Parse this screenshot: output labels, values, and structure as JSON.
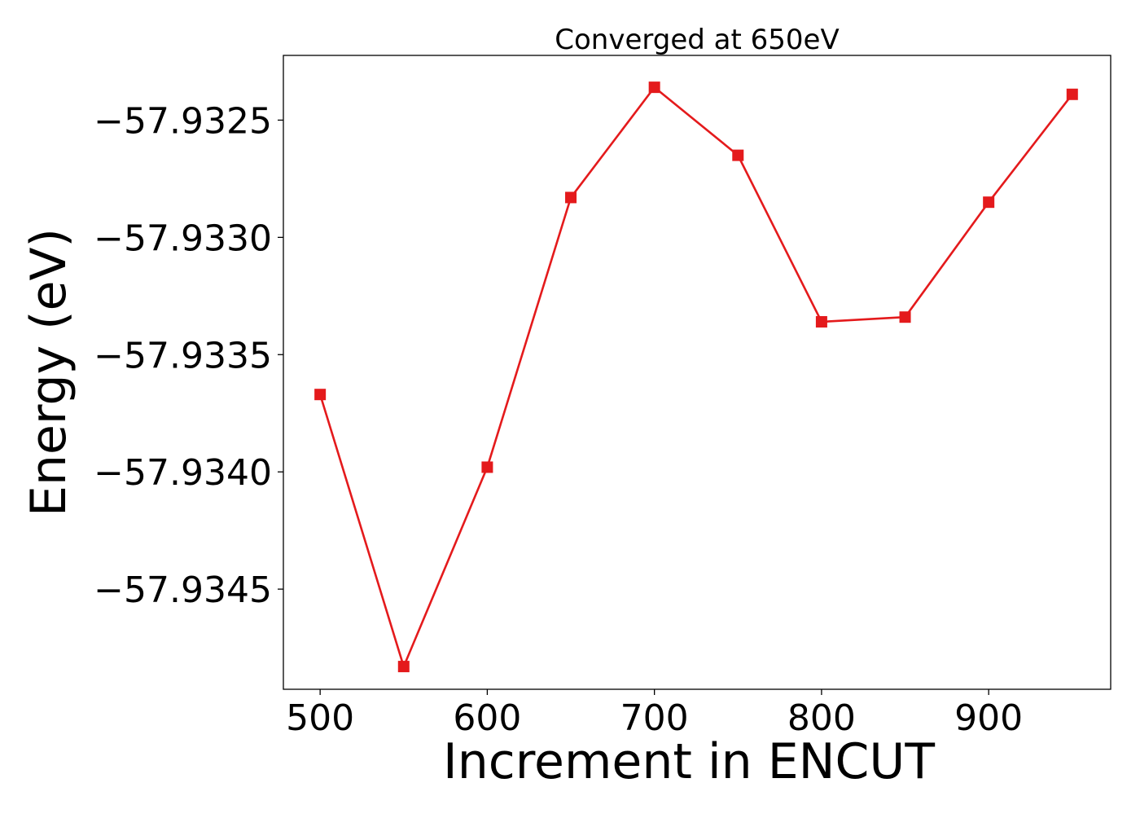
{
  "chart_data": {
    "type": "line",
    "title": "Converged at 650eV",
    "xlabel": "Increment in ENCUT",
    "ylabel": "Energy (eV)",
    "x": [
      500,
      550,
      600,
      650,
      700,
      750,
      800,
      850,
      900,
      950
    ],
    "series": [
      {
        "name": "",
        "values": [
          -57.93367,
          -57.93483,
          -57.93398,
          -57.93283,
          -57.93236,
          -57.93265,
          -57.93336,
          -57.93334,
          -57.93285,
          -57.93239
        ],
        "color": "#e41a1c",
        "marker": "square"
      }
    ],
    "xticks": [
      500,
      600,
      700,
      800,
      900
    ],
    "xtick_labels": [
      "500",
      "600",
      "700",
      "800",
      "900"
    ],
    "yticks": [
      -57.9345,
      -57.934,
      -57.9335,
      -57.933,
      -57.9325
    ],
    "ytick_labels": [
      "−57.9345",
      "−57.9340",
      "−57.9335",
      "−57.9330",
      "−57.9325"
    ],
    "xlim": [
      478,
      973
    ],
    "ylim": [
      -57.934927,
      -57.932224
    ],
    "grid": false,
    "legend": "none"
  }
}
